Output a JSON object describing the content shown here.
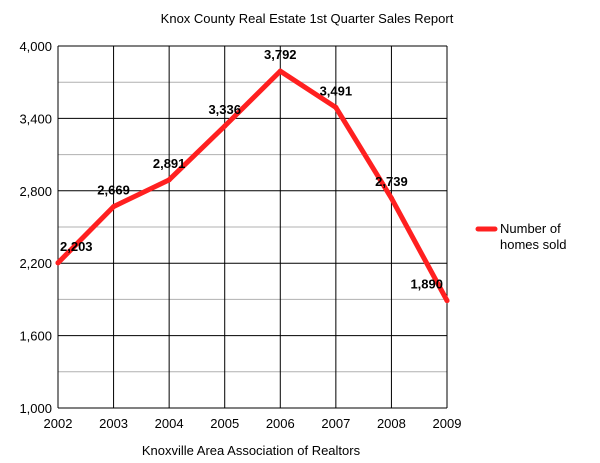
{
  "chart_data": {
    "type": "line",
    "title": "Knox County Real Estate 1st Quarter Sales Report",
    "xlabel": "Knoxville Area Association of Realtors",
    "ylabel": "",
    "x": [
      "2002",
      "2003",
      "2004",
      "2005",
      "2006",
      "2007",
      "2008",
      "2009"
    ],
    "series": [
      {
        "name": "Number of homes sold",
        "values": [
          2203,
          2669,
          2891,
          3336,
          3792,
          3491,
          2739,
          1890
        ],
        "labels": [
          "2,203",
          "2,669",
          "2,891",
          "3,336",
          "3,792",
          "3,491",
          "2,739",
          "1,890"
        ],
        "color": "#ff2020"
      }
    ],
    "ylim": [
      1000,
      4000
    ],
    "yticks": [
      1000,
      1600,
      2200,
      2800,
      3400,
      4000
    ],
    "ytick_labels": [
      "1,000",
      "1,600",
      "2,200",
      "2,800",
      "3,400",
      "4,000"
    ],
    "legend_position": "right",
    "legend_lines": [
      "Number of",
      "homes sold"
    ],
    "grid": true
  }
}
